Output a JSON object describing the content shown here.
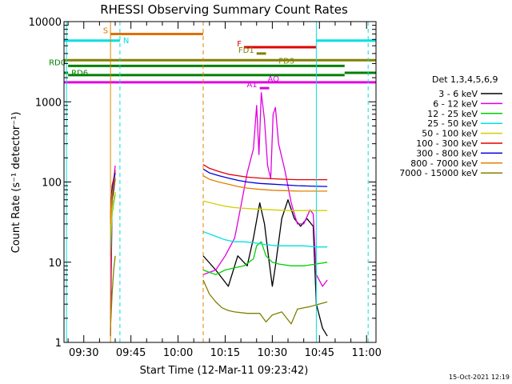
{
  "chart_data": {
    "type": "line",
    "title": "RHESSI Observing Summary Count Rates",
    "xlabel": "Start Time (12-Mar-11 09:23:42)",
    "ylabel": "Count Rate (s⁻¹ detector⁻¹)",
    "y_scale": "log",
    "ylim": [
      1,
      10000
    ],
    "xlim": [
      "09:23:42",
      "11:03:00"
    ],
    "x_ticks": [
      "09:30",
      "09:45",
      "10:00",
      "10:15",
      "10:30",
      "10:45",
      "11:00"
    ],
    "y_ticks": [
      "1",
      "10",
      "100",
      "1000",
      "10000"
    ],
    "legend_title": "Det 1,3,4,5,6,9",
    "legend_position": "right",
    "grid": false,
    "timestamp": "15-Oct-2021 12:19",
    "series": [
      {
        "name": "3 - 6 keV",
        "color": "#000000",
        "segments": [
          [
            [
              "09:38:30",
              1.2
            ],
            [
              "09:39:00",
              60
            ],
            [
              "09:39:30",
              80
            ],
            [
              "09:40:00",
              110
            ]
          ],
          [
            [
              "10:08:00",
              12
            ],
            [
              "10:12:00",
              8
            ],
            [
              "10:16:00",
              5
            ],
            [
              "10:19:00",
              12
            ],
            [
              "10:22:00",
              9
            ],
            [
              "10:24:00",
              20
            ],
            [
              "10:26:00",
              55
            ],
            [
              "10:27:30",
              30
            ],
            [
              "10:29:00",
              10
            ],
            [
              "10:30:00",
              5
            ],
            [
              "10:31:00",
              9
            ],
            [
              "10:33:00",
              35
            ],
            [
              "10:35:00",
              60
            ],
            [
              "10:37:00",
              35
            ],
            [
              "10:39:00",
              28
            ],
            [
              "10:41:00",
              35
            ],
            [
              "10:43:00",
              28
            ],
            [
              "10:44:00",
              3
            ],
            [
              "10:46:00",
              1.5
            ],
            [
              "10:47:30",
              1.2
            ]
          ]
        ]
      },
      {
        "name": "6 - 12 keV",
        "color": "#e000e0",
        "segments": [
          [
            [
              "09:38:30",
              2
            ],
            [
              "09:39:00",
              70
            ],
            [
              "09:39:30",
              100
            ],
            [
              "09:40:00",
              160
            ]
          ],
          [
            [
              "10:08:00",
              7
            ],
            [
              "10:12:00",
              8
            ],
            [
              "10:15:00",
              12
            ],
            [
              "10:18:00",
              20
            ],
            [
              "10:20:00",
              50
            ],
            [
              "10:22:00",
              130
            ],
            [
              "10:24:00",
              260
            ],
            [
              "10:25:00",
              900
            ],
            [
              "10:25:45",
              220
            ],
            [
              "10:26:30",
              1300
            ],
            [
              "10:27:30",
              600
            ],
            [
              "10:28:30",
              160
            ],
            [
              "10:29:30",
              110
            ],
            [
              "10:30:15",
              700
            ],
            [
              "10:31:00",
              850
            ],
            [
              "10:32:00",
              300
            ],
            [
              "10:34:00",
              140
            ],
            [
              "10:36:00",
              55
            ],
            [
              "10:37:00",
              40
            ],
            [
              "10:38:00",
              30
            ],
            [
              "10:40:00",
              30
            ],
            [
              "10:42:00",
              45
            ],
            [
              "10:43:00",
              40
            ],
            [
              "10:44:00",
              7
            ],
            [
              "10:46:00",
              5
            ],
            [
              "10:47:30",
              6
            ]
          ]
        ]
      },
      {
        "name": "12 - 25 keV",
        "color": "#00d000",
        "segments": [
          [
            [
              "09:38:30",
              12
            ],
            [
              "09:39:00",
              40
            ],
            [
              "09:39:30",
              55
            ],
            [
              "09:40:00",
              70
            ]
          ],
          [
            [
              "10:08:00",
              8
            ],
            [
              "10:12:00",
              7
            ],
            [
              "10:15:00",
              8
            ],
            [
              "10:18:00",
              8.5
            ],
            [
              "10:21:00",
              9
            ],
            [
              "10:24:00",
              11
            ],
            [
              "10:25:00",
              16
            ],
            [
              "10:26:30",
              18
            ],
            [
              "10:28:00",
              12
            ],
            [
              "10:30:00",
              10
            ],
            [
              "10:32:00",
              9.5
            ],
            [
              "10:36:00",
              9
            ],
            [
              "10:40:00",
              9
            ],
            [
              "10:44:00",
              9.5
            ],
            [
              "10:47:30",
              10
            ]
          ]
        ]
      },
      {
        "name": "25 - 50 keV",
        "color": "#00e0e0",
        "segments": [
          [
            [
              "09:38:30",
              15
            ],
            [
              "09:39:00",
              45
            ],
            [
              "09:39:30",
              60
            ],
            [
              "09:40:00",
              75
            ]
          ],
          [
            [
              "10:08:00",
              24
            ],
            [
              "10:12:00",
              21
            ],
            [
              "10:15:00",
              19
            ],
            [
              "10:18:00",
              18
            ],
            [
              "10:21:00",
              18
            ],
            [
              "10:24:00",
              17.5
            ],
            [
              "10:28:00",
              16.5
            ],
            [
              "10:32:00",
              16
            ],
            [
              "10:36:00",
              16
            ],
            [
              "10:40:00",
              16
            ],
            [
              "10:44:00",
              15.5
            ],
            [
              "10:47:30",
              15.5
            ]
          ]
        ]
      },
      {
        "name": "50 - 100 keV",
        "color": "#d0d000",
        "segments": [
          [
            [
              "09:38:30",
              20
            ],
            [
              "09:39:00",
              45
            ],
            [
              "09:39:30",
              60
            ],
            [
              "09:40:00",
              75
            ]
          ],
          [
            [
              "10:08:00",
              58
            ],
            [
              "10:12:00",
              53
            ],
            [
              "10:15:00",
              50
            ],
            [
              "10:18:00",
              48
            ],
            [
              "10:21:00",
              47
            ],
            [
              "10:25:00",
              46
            ],
            [
              "10:30:00",
              45
            ],
            [
              "10:35:00",
              44
            ],
            [
              "10:40:00",
              44
            ],
            [
              "10:44:00",
              44
            ],
            [
              "10:47:30",
              44
            ]
          ]
        ]
      },
      {
        "name": "100 - 300 keV",
        "color": "#e00000",
        "segments": [
          [
            [
              "09:38:30",
              40
            ],
            [
              "09:39:00",
              90
            ],
            [
              "09:39:30",
              110
            ],
            [
              "09:40:00",
              140
            ]
          ],
          [
            [
              "10:08:00",
              165
            ],
            [
              "10:10:00",
              148
            ],
            [
              "10:13:00",
              135
            ],
            [
              "10:16:00",
              125
            ],
            [
              "10:19:00",
              120
            ],
            [
              "10:22:00",
              115
            ],
            [
              "10:26:00",
              112
            ],
            [
              "10:30:00",
              110
            ],
            [
              "10:34:00",
              108
            ],
            [
              "10:38:00",
              107
            ],
            [
              "10:42:00",
              107
            ],
            [
              "10:47:30",
              107
            ]
          ]
        ]
      },
      {
        "name": "300 - 800 keV",
        "color": "#0000e0",
        "segments": [
          [
            [
              "09:38:30",
              35
            ],
            [
              "09:39:00",
              80
            ],
            [
              "09:39:30",
              100
            ],
            [
              "09:40:00",
              130
            ]
          ],
          [
            [
              "10:08:00",
              145
            ],
            [
              "10:10:00",
              130
            ],
            [
              "10:13:00",
              120
            ],
            [
              "10:16:00",
              112
            ],
            [
              "10:19:00",
              105
            ],
            [
              "10:22:00",
              100
            ],
            [
              "10:26:00",
              96
            ],
            [
              "10:30:00",
              94
            ],
            [
              "10:34:00",
              92
            ],
            [
              "10:38:00",
              90
            ],
            [
              "10:42:00",
              89
            ],
            [
              "10:47:30",
              88
            ]
          ]
        ]
      },
      {
        "name": "800 - 7000 keV",
        "color": "#e08000",
        "segments": [
          [
            [
              "09:38:30",
              30
            ],
            [
              "09:39:00",
              70
            ],
            [
              "09:39:30",
              90
            ],
            [
              "09:40:00",
              115
            ]
          ],
          [
            [
              "10:08:00",
              120
            ],
            [
              "10:10:00",
              108
            ],
            [
              "10:13:00",
              100
            ],
            [
              "10:16:00",
              94
            ],
            [
              "10:19:00",
              88
            ],
            [
              "10:22:00",
              84
            ],
            [
              "10:26:00",
              81
            ],
            [
              "10:30:00",
              79
            ],
            [
              "10:34:00",
              78
            ],
            [
              "10:38:00",
              77
            ],
            [
              "10:42:00",
              77
            ],
            [
              "10:47:30",
              77
            ]
          ]
        ]
      },
      {
        "name": "7000 - 15000 keV",
        "color": "#808000",
        "segments": [
          [
            [
              "09:38:30",
              1.5
            ],
            [
              "09:39:00",
              4
            ],
            [
              "09:39:30",
              8
            ],
            [
              "09:40:00",
              12
            ]
          ],
          [
            [
              "10:08:00",
              6
            ],
            [
              "10:10:00",
              4
            ],
            [
              "10:12:00",
              3.2
            ],
            [
              "10:14:00",
              2.7
            ],
            [
              "10:16:00",
              2.5
            ],
            [
              "10:18:00",
              2.4
            ],
            [
              "10:22:00",
              2.3
            ],
            [
              "10:26:00",
              2.3
            ],
            [
              "10:28:00",
              1.8
            ],
            [
              "10:30:00",
              2.2
            ],
            [
              "10:33:00",
              2.4
            ],
            [
              "10:36:00",
              1.7
            ],
            [
              "10:38:00",
              2.6
            ],
            [
              "10:42:00",
              2.8
            ],
            [
              "10:47:30",
              3.2
            ]
          ]
        ]
      }
    ],
    "flag_bars": [
      {
        "label": "S",
        "color": "#e07000",
        "y": 7000,
        "start": "09:38:30",
        "end": "10:08:00",
        "label_side": "left"
      },
      {
        "label": "N",
        "color": "#00e0e0",
        "y": 5800,
        "start": "09:23:42",
        "end": "09:41:30",
        "label_side": "right"
      },
      {
        "label": "N",
        "color": "#00e0e0",
        "y": 5800,
        "start": "10:44:00",
        "end": "11:03:00",
        "label_side": "none"
      },
      {
        "label": "F",
        "color": "#e00000",
        "y": 4800,
        "start": "10:21:00",
        "end": "10:44:00",
        "label_side": "left"
      },
      {
        "label": "FD1",
        "color": "#808000",
        "y": 4000,
        "start": "10:25:00",
        "end": "10:28:00",
        "label_side": "left"
      },
      {
        "label": "FD3",
        "color": "#808000",
        "y": 3300,
        "start": "09:23:42",
        "end": "11:03:00",
        "label_side": "inline"
      },
      {
        "label": "RD0",
        "color": "#008000",
        "y": 2800,
        "start": "09:25:00",
        "end": "10:53:00",
        "label_side": "left"
      },
      {
        "label": "RD0",
        "color": "#008000",
        "y": 2300,
        "start": "10:53:00",
        "end": "11:03:00",
        "label_side": "none"
      },
      {
        "label": "RD6",
        "color": "#008000",
        "y": 2300,
        "start": "09:23:42",
        "end": "09:25:00",
        "label_side": "right"
      },
      {
        "label": "RD6",
        "color": "#008000",
        "y": 2150,
        "start": "09:25:00",
        "end": "10:53:00",
        "label_side": "none"
      },
      {
        "label": "AQ",
        "color": "#e000e0",
        "y": 1750,
        "start": "09:23:42",
        "end": "11:03:00",
        "label_side": "mid"
      },
      {
        "label": "A1",
        "color": "#e000e0",
        "y": 1480,
        "start": "10:26:00",
        "end": "10:29:00",
        "label_side": "left"
      }
    ],
    "vertical_markers": [
      {
        "time": "09:24:30",
        "color": "#00e0e0",
        "style": "solid"
      },
      {
        "time": "09:38:30",
        "color": "#e08000",
        "style": "solid"
      },
      {
        "time": "09:41:30",
        "color": "#00e0e0",
        "style": "dashed"
      },
      {
        "time": "10:08:00",
        "color": "#e08000",
        "style": "dashed"
      },
      {
        "time": "10:44:00",
        "color": "#00e0e0",
        "style": "solid"
      },
      {
        "time": "11:00:30",
        "color": "#00e0e0",
        "style": "dashed"
      }
    ]
  }
}
